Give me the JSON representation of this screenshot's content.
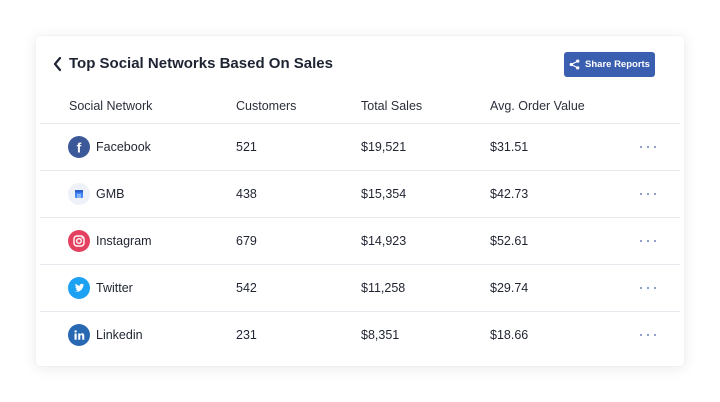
{
  "header": {
    "title": "Top Social Networks Based On Sales",
    "share_label": "Share Reports"
  },
  "columns": [
    "Social Network",
    "Customers",
    "Total Sales",
    "Avg. Order Value"
  ],
  "rows": [
    {
      "network": "Facebook",
      "icon": "facebook-icon",
      "color": "#3b5998",
      "customers": "521",
      "total_sales": "$19,521",
      "avg_order_value": "$31.51"
    },
    {
      "network": "GMB",
      "icon": "gmb-icon",
      "color": "#4285f4",
      "customers": "438",
      "total_sales": "$15,354",
      "avg_order_value": "$42.73"
    },
    {
      "network": "Instagram",
      "icon": "instagram-icon",
      "color": "#e4405f",
      "customers": "679",
      "total_sales": "$14,923",
      "avg_order_value": "$52.61"
    },
    {
      "network": "Twitter",
      "icon": "twitter-icon",
      "color": "#1da1f2",
      "customers": "542",
      "total_sales": "$11,258",
      "avg_order_value": "$29.74"
    },
    {
      "network": "Linkedin",
      "icon": "linkedin-icon",
      "color": "#2867b2",
      "customers": "231",
      "total_sales": "$8,351",
      "avg_order_value": "$18.66"
    }
  ],
  "colors": {
    "accent": "#3b5fb0",
    "more_dots": "#6d83b8"
  }
}
